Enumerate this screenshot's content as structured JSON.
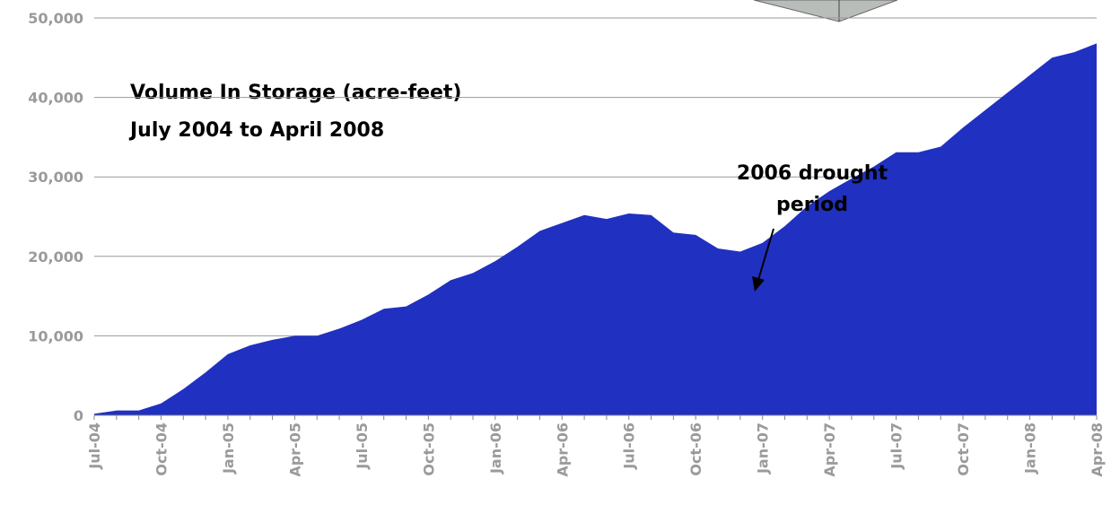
{
  "chart_data": {
    "type": "area",
    "title": "Volume In Storage (acre-feet)",
    "subtitle": "July 2004 to April 2008",
    "annotation": [
      "2006 drought",
      "period"
    ],
    "categories": [
      "Jul-04",
      null,
      null,
      "Oct-04",
      null,
      null,
      "Jan-05",
      null,
      null,
      "Apr-05",
      null,
      null,
      "Jul-05",
      null,
      null,
      "Oct-05",
      null,
      null,
      "Jan-06",
      null,
      null,
      "Apr-06",
      null,
      null,
      "Jul-06",
      null,
      null,
      "Oct-06",
      null,
      null,
      "Jan-07",
      null,
      null,
      "Apr-07",
      null,
      null,
      "Jul-07",
      null,
      null,
      "Oct-07",
      null,
      null,
      "Jan-08",
      null,
      null,
      "Apr-08"
    ],
    "values": [
      200,
      600,
      600,
      1500,
      3300,
      5400,
      7700,
      8800,
      9500,
      10000,
      10000,
      10900,
      12000,
      13400,
      13700,
      15200,
      17000,
      17900,
      19400,
      21200,
      23200,
      24200,
      25200,
      24700,
      25400,
      25200,
      23000,
      22700,
      21000,
      20600,
      21700,
      23800,
      26300,
      28200,
      29800,
      31300,
      33100,
      33100,
      33800,
      36200,
      38400,
      40600,
      42800,
      45000,
      45700,
      46800
    ],
    "color": "#2030c0",
    "ylim": [
      0,
      50000
    ],
    "yticks": [
      0,
      {
        "value": 10000,
        "label": "10,000"
      },
      {
        "value": 20000,
        "label": "20,000"
      },
      {
        "value": 30000,
        "label": "30,000"
      },
      {
        "value": 40000,
        "label": "40,000"
      },
      {
        "value": 50000,
        "label": "50,000"
      }
    ],
    "grid": true
  }
}
